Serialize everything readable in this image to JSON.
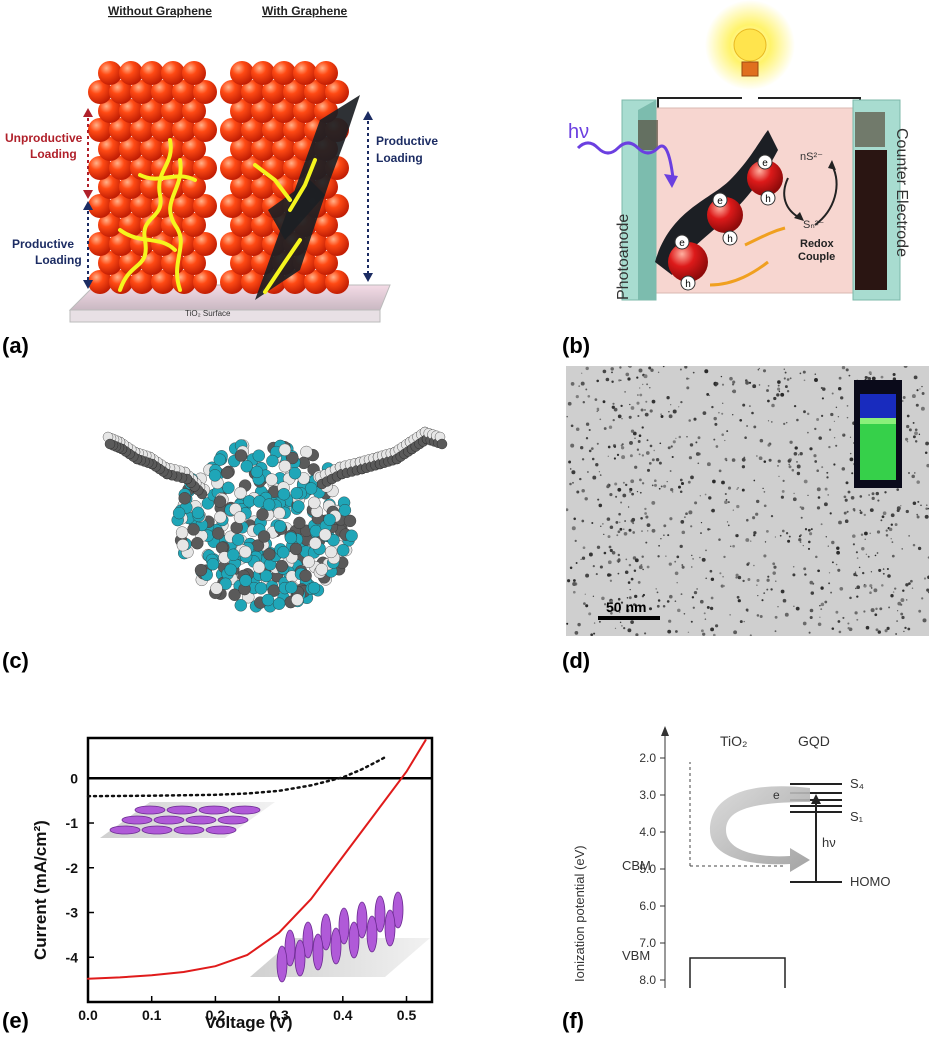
{
  "figure": {
    "panel_labels": [
      "(a)",
      "(b)",
      "(c)",
      "(d)",
      "(e)",
      "(f)"
    ]
  },
  "panel_a": {
    "left_title": "Without Graphene",
    "right_title": "With Graphene",
    "unproductive_line1": "Unproductive",
    "unproductive_line2": "Loading",
    "productive_left_line1": "Productive",
    "productive_left_line2": "Loading",
    "productive_right_line1": "Productive",
    "productive_right_line2": "Loading",
    "surface": "TiO₂ Surface",
    "colors": {
      "sphere": "#ff3b10",
      "arrow": "#f5f51e",
      "graphene": "#1c1f24",
      "unproductive": "#b0202a",
      "productive": "#1c2c63"
    }
  },
  "panel_b": {
    "hv": "hν",
    "photoanode": "Photoanode",
    "counter": "Counter Electrode",
    "ns": "nS²⁻",
    "sn": "Sₙ²⁻",
    "redox1": "Redox",
    "redox2": "Couple",
    "e_label": "e",
    "h_label": "h",
    "colors": {
      "bg": "#f7d6d0",
      "electrode": "#a8dcd0",
      "counter": "#2a1512",
      "photon": "#6b3fe0",
      "particle": "#d11a1a"
    }
  },
  "panel_c": {
    "colors": {
      "cyan": "#1fa6b8",
      "white": "#e6e6e6",
      "grey": "#5a5a5a"
    }
  },
  "panel_d": {
    "scale": "50 nm",
    "colors": {
      "vial_liquid": "#36d04a",
      "vial_glow": "#1a2fd0"
    }
  },
  "panel_e": {
    "xlabel": "Voltage (V)",
    "ylabel": "Current (mA/cm²)",
    "colors": {
      "red": "#e01b1b",
      "dark": "#111111",
      "disc": "#b05ad8"
    }
  },
  "panel_f": {
    "ylabel": "Ionization potential (eV)",
    "tio2": "TiO₂",
    "gqd": "GQD",
    "s4": "S₄",
    "s1": "S₁",
    "hv": "hν",
    "e": "e",
    "cbm": "CBM",
    "vbm": "VBM",
    "homo": "HOMO",
    "ticks": [
      "2.0",
      "3.0",
      "4.0",
      "5.0",
      "6.0",
      "7.0",
      "8.0"
    ]
  },
  "chart_data": [
    {
      "type": "line",
      "panel": "e",
      "xlabel": "Voltage (V)",
      "ylabel": "Current (mA/cm²)",
      "xlim": [
        0.0,
        0.54
      ],
      "ylim": [
        -5.0,
        0.9
      ],
      "x_ticks": [
        "0.0",
        "0.1",
        "0.2",
        "0.3",
        "0.4",
        "0.5"
      ],
      "y_ticks": [
        "0",
        "-1",
        "-2",
        "-3",
        "-4"
      ],
      "series": [
        {
          "style": "solid-red",
          "x": [
            0.0,
            0.05,
            0.1,
            0.15,
            0.2,
            0.25,
            0.3,
            0.35,
            0.4,
            0.45,
            0.5,
            0.53
          ],
          "y": [
            -4.48,
            -4.45,
            -4.4,
            -4.33,
            -4.2,
            -3.95,
            -3.45,
            -2.7,
            -1.75,
            -0.8,
            0.15,
            0.85
          ]
        },
        {
          "style": "dotted-black",
          "x": [
            0.0,
            0.1,
            0.2,
            0.25,
            0.3,
            0.35,
            0.4,
            0.43,
            0.46,
            0.47
          ],
          "y": [
            -0.4,
            -0.39,
            -0.37,
            -0.34,
            -0.28,
            -0.16,
            0.02,
            0.2,
            0.42,
            0.5
          ]
        }
      ]
    }
  ]
}
